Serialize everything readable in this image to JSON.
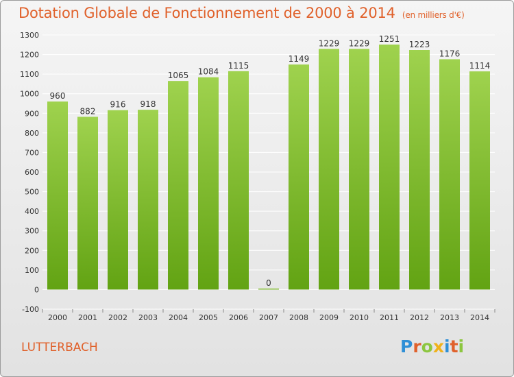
{
  "header": {
    "title": "Dotation Globale de Fonctionnement de 2000 à 2014",
    "unit": "(en milliers d'€)"
  },
  "footer": {
    "commune": "LUTTERBACH",
    "logo": [
      "P",
      "r",
      "o",
      "x",
      "i",
      "t",
      "i"
    ]
  },
  "colors": {
    "title": "#e0612b",
    "bar_top": "#9fd24e",
    "bar_bottom": "#62a313",
    "grid": "#ffffff"
  },
  "chart_data": {
    "type": "bar",
    "title": "Dotation Globale de Fonctionnement de 2000 à 2014",
    "subtitle": "(en milliers d'€)",
    "categories": [
      "2000",
      "2001",
      "2002",
      "2003",
      "2004",
      "2005",
      "2006",
      "2007",
      "2008",
      "2009",
      "2010",
      "2011",
      "2012",
      "2013",
      "2014"
    ],
    "values": [
      960,
      882,
      916,
      918,
      1065,
      1084,
      1115,
      0,
      1149,
      1229,
      1229,
      1251,
      1223,
      1176,
      1114
    ],
    "ylim": [
      -100,
      1300
    ],
    "yticks": [
      -100,
      0,
      100,
      200,
      300,
      400,
      500,
      600,
      700,
      800,
      900,
      1000,
      1100,
      1200,
      1300
    ],
    "grid": true,
    "data_labels": true
  }
}
